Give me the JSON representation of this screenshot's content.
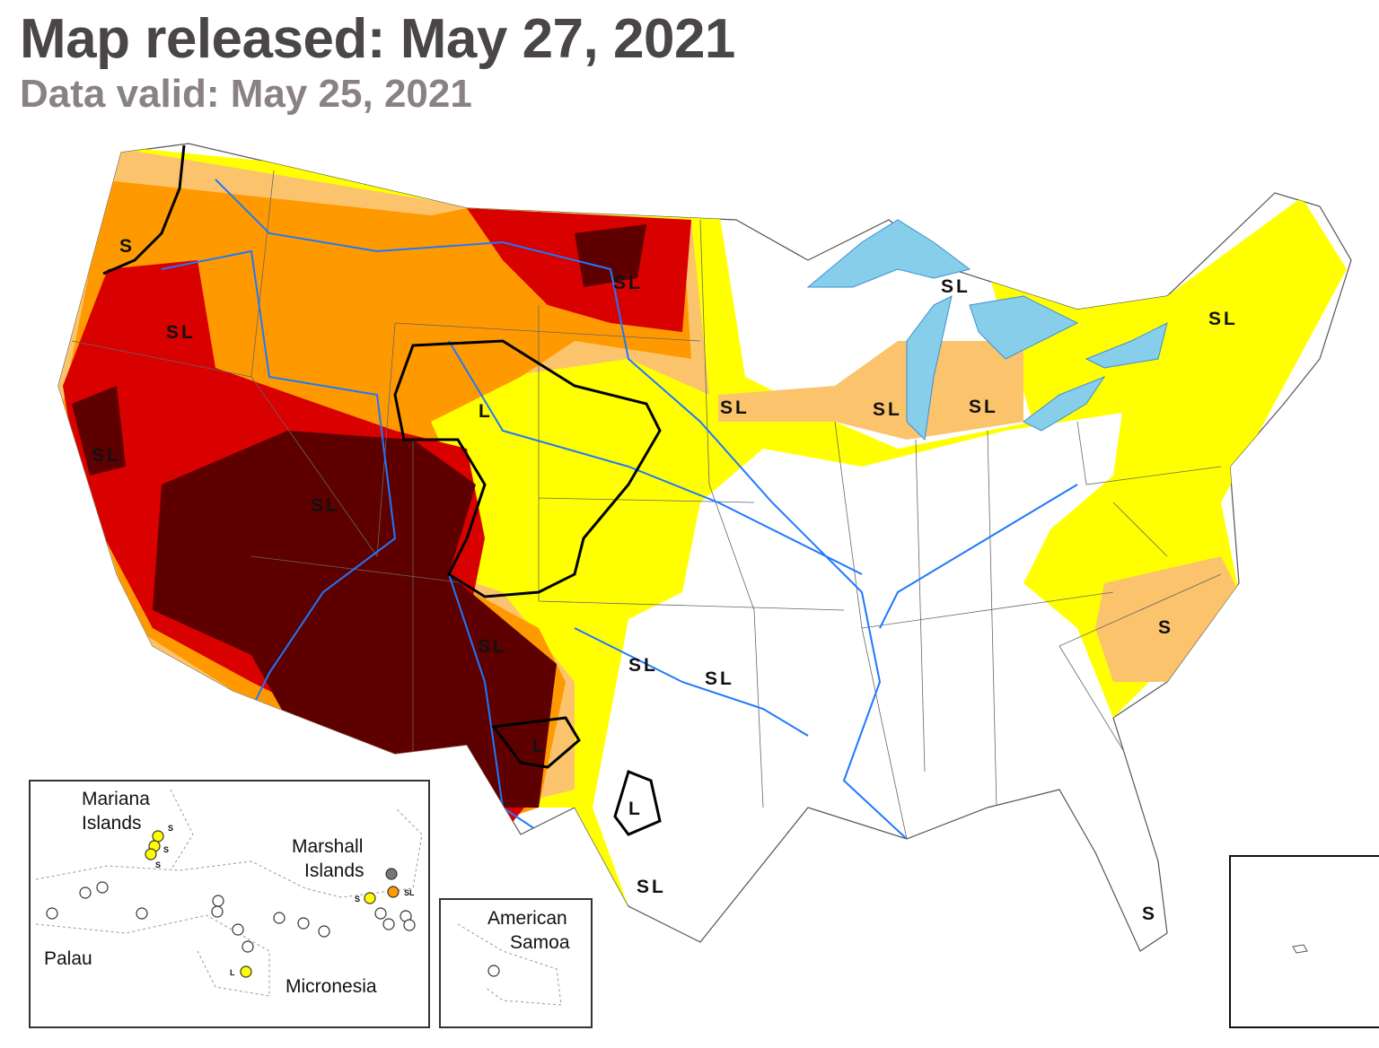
{
  "header": {
    "title": "Map released: May 27, 2021",
    "subtitle": "Data valid: May 25, 2021"
  },
  "colors": {
    "D0_abnormally_dry": "#FFFF00",
    "D1_moderate": "#FBC46C",
    "D2_severe": "#FF9900",
    "D3_extreme": "#D90000",
    "D4_exceptional": "#5E0000",
    "water": "#87CEEB",
    "rivers": "#1E78FF",
    "impact_boundary": "#000000"
  },
  "impact_labels": {
    "sl": "SL",
    "s": "S",
    "l": "L"
  },
  "insets": {
    "pacific": [
      "Mariana Islands",
      "Marshall Islands",
      "Palau",
      "Micronesia"
    ],
    "samoa": "American Samoa",
    "mariana_label_1": "Mariana",
    "mariana_label_2": "Islands",
    "marshall_label_1": "Marshall",
    "marshall_label_2": "Islands",
    "palau": "Palau",
    "micronesia": "Micronesia",
    "samoa_label_1": "American",
    "samoa_label_2": "Samoa"
  }
}
